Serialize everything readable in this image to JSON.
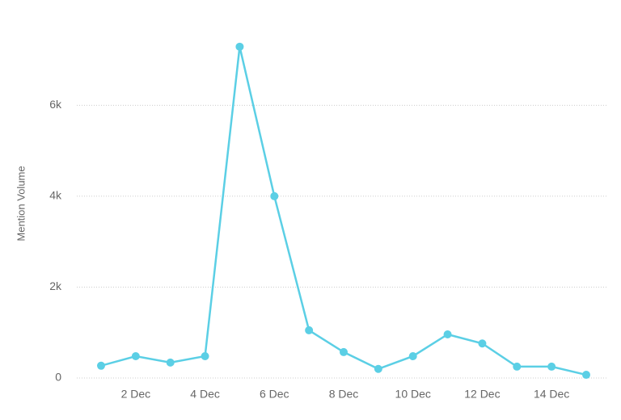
{
  "chart_data": {
    "type": "line",
    "y_label": "Mention Volume",
    "categories": [
      null,
      "2 Dec",
      null,
      "4 Dec",
      null,
      "6 Dec",
      null,
      "8 Dec",
      null,
      "10 Dec",
      null,
      "12 Dec",
      null,
      "14 Dec",
      null
    ],
    "series": [
      {
        "name": "Mention Volume",
        "color": "#5bcfe5",
        "values": [
          270,
          480,
          340,
          480,
          7290,
          4000,
          1050,
          570,
          200,
          480,
          960,
          760,
          250,
          250,
          70
        ]
      }
    ],
    "ylim": [
      0,
      7500
    ],
    "yticks": [
      0,
      {
        "value": 2000,
        "label": "2k"
      },
      {
        "value": 4000,
        "label": "4k"
      },
      {
        "value": 6000,
        "label": "6k"
      }
    ],
    "grid": true
  }
}
